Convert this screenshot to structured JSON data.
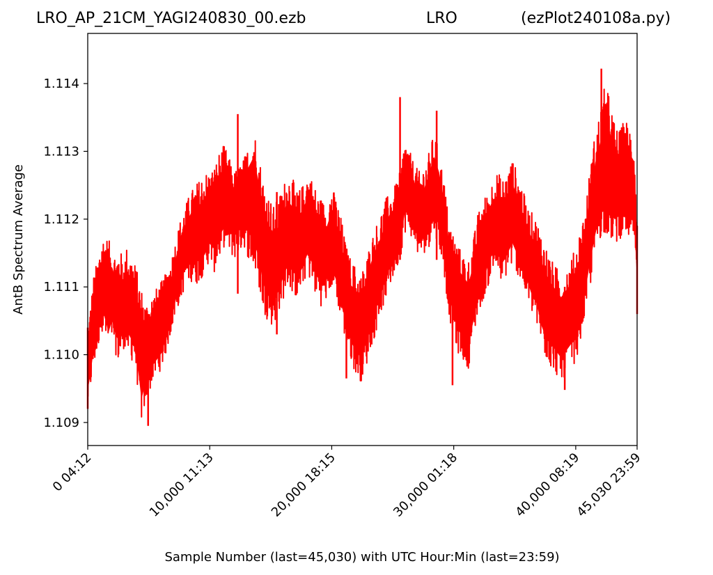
{
  "header": {
    "title_left": "LRO_AP_21CM_YAGI240830_00.ezb",
    "title_center": "LRO",
    "title_right": "(ezPlot240108a.py)"
  },
  "chart_data": {
    "type": "line",
    "xlabel": "Sample Number (last=45,030) with UTC Hour:Min (last=23:59)",
    "ylabel": "AntB Spectrum Average",
    "xlim": [
      0,
      45030
    ],
    "ylim": [
      1.10866,
      1.11474
    ],
    "grid": false,
    "xticks": [
      {
        "value": 0,
        "label": "0  04:12"
      },
      {
        "value": 10000,
        "label": "10,000  11:13"
      },
      {
        "value": 20000,
        "label": "20,000  18:15"
      },
      {
        "value": 30000,
        "label": "30,000  01:18"
      },
      {
        "value": 40000,
        "label": "40,000  08:19"
      },
      {
        "value": 45030,
        "label": "45,030  23:59"
      }
    ],
    "yticks": [
      {
        "value": 1.109,
        "label": "1.109"
      },
      {
        "value": 1.11,
        "label": "1.110"
      },
      {
        "value": 1.111,
        "label": "1.111"
      },
      {
        "value": 1.112,
        "label": "1.112"
      },
      {
        "value": 1.113,
        "label": "1.113"
      },
      {
        "value": 1.114,
        "label": "1.114"
      }
    ],
    "series": [
      {
        "color": "#ff0000",
        "x": [
          0,
          250,
          500,
          800,
          1100,
          1400,
          1700,
          2000,
          2300,
          2600,
          2900,
          3200,
          3500,
          3800,
          4100,
          4400,
          4700,
          5000,
          5300,
          5700,
          6100,
          6400,
          6800,
          7200,
          7600,
          8000,
          8400,
          8800,
          9200,
          9600,
          10000,
          10400,
          10800,
          11200,
          11600,
          12000,
          12400,
          12800,
          13200,
          13600,
          14000,
          14400,
          14800,
          15200,
          15600,
          16000,
          16400,
          16800,
          17200,
          17600,
          18000,
          18400,
          18800,
          19200,
          19600,
          20000,
          20400,
          20800,
          21200,
          21600,
          22000,
          22400,
          22800,
          23200,
          23600,
          24000,
          24400,
          24800,
          25200,
          25600,
          26000,
          26400,
          26800,
          27200,
          27600,
          28000,
          28400,
          28800,
          29200,
          29600,
          30000,
          30400,
          30800,
          31200,
          31600,
          32000,
          32400,
          32800,
          33200,
          33600,
          34000,
          34400,
          34800,
          35200,
          35600,
          36000,
          36400,
          36800,
          37200,
          37600,
          38000,
          38400,
          38800,
          39200,
          39600,
          40000,
          40400,
          40800,
          41200,
          41600,
          42000,
          42400,
          42800,
          43200,
          43600,
          44000,
          44400,
          44800,
          45030
        ],
        "low": [
          1.1092,
          1.1095,
          1.1098,
          1.11,
          1.1104,
          1.1102,
          1.11,
          1.1102,
          1.11,
          1.1098,
          1.1101,
          1.11,
          1.1099,
          1.1099,
          1.1095,
          1.109,
          1.1092,
          1.1094,
          1.1096,
          1.1097,
          1.1098,
          1.11,
          1.1103,
          1.1106,
          1.1108,
          1.111,
          1.1111,
          1.111,
          1.1111,
          1.1112,
          1.1114,
          1.1112,
          1.1114,
          1.1116,
          1.1115,
          1.1114,
          1.1115,
          1.1116,
          1.1114,
          1.1112,
          1.111,
          1.1106,
          1.1105,
          1.1104,
          1.1106,
          1.1108,
          1.111,
          1.1109,
          1.1108,
          1.111,
          1.1112,
          1.111,
          1.1108,
          1.1107,
          1.1108,
          1.111,
          1.1108,
          1.1105,
          1.1101,
          1.1099,
          1.1097,
          1.1096,
          1.1098,
          1.1101,
          1.1103,
          1.1106,
          1.1108,
          1.111,
          1.1112,
          1.1114,
          1.1118,
          1.1118,
          1.1116,
          1.1114,
          1.1115,
          1.1116,
          1.1118,
          1.1116,
          1.1112,
          1.1106,
          1.1102,
          1.11,
          1.1099,
          1.1098,
          1.1102,
          1.1106,
          1.1108,
          1.111,
          1.1112,
          1.1112,
          1.111,
          1.1112,
          1.1113,
          1.1112,
          1.111,
          1.1108,
          1.1106,
          1.1104,
          1.1101,
          1.1099,
          1.1098,
          1.1097,
          1.1096,
          1.1097,
          1.1098,
          1.1099,
          1.1102,
          1.1106,
          1.111,
          1.1114,
          1.1117,
          1.1118,
          1.1117,
          1.1116,
          1.1117,
          1.1118,
          1.1117,
          1.1116,
          1.1108
        ],
        "high": [
          1.1104,
          1.1108,
          1.1112,
          1.1114,
          1.1117,
          1.1118,
          1.1117,
          1.1116,
          1.1115,
          1.1116,
          1.1114,
          1.1116,
          1.1115,
          1.1114,
          1.1112,
          1.111,
          1.1108,
          1.1108,
          1.1109,
          1.111,
          1.1111,
          1.1112,
          1.1114,
          1.1117,
          1.112,
          1.1122,
          1.1124,
          1.1125,
          1.1126,
          1.1127,
          1.1127,
          1.1128,
          1.113,
          1.1131,
          1.1129,
          1.1127,
          1.1128,
          1.1129,
          1.1131,
          1.1134,
          1.113,
          1.1126,
          1.1124,
          1.1122,
          1.1123,
          1.1125,
          1.1127,
          1.1126,
          1.1124,
          1.1125,
          1.1127,
          1.1126,
          1.1124,
          1.1123,
          1.1122,
          1.1125,
          1.1123,
          1.112,
          1.1116,
          1.1114,
          1.1113,
          1.1112,
          1.1114,
          1.1117,
          1.1119,
          1.1121,
          1.1123,
          1.1124,
          1.1125,
          1.1127,
          1.1132,
          1.113,
          1.1128,
          1.1127,
          1.1128,
          1.113,
          1.1133,
          1.113,
          1.1126,
          1.112,
          1.1118,
          1.1116,
          1.1115,
          1.1114,
          1.1117,
          1.1121,
          1.1123,
          1.1124,
          1.1126,
          1.1127,
          1.1126,
          1.1127,
          1.1129,
          1.1127,
          1.1125,
          1.1122,
          1.1121,
          1.112,
          1.1118,
          1.1116,
          1.1114,
          1.1113,
          1.1112,
          1.1113,
          1.1114,
          1.1116,
          1.1119,
          1.1122,
          1.1128,
          1.1133,
          1.1136,
          1.114,
          1.1138,
          1.1134,
          1.1133,
          1.1135,
          1.1134,
          1.1132,
          1.112
        ],
        "center": [
          1.1098,
          1.1101,
          1.1105,
          1.1107,
          1.111,
          1.111,
          1.1108,
          1.1109,
          1.1107,
          1.1107,
          1.1107,
          1.1108,
          1.1107,
          1.1106,
          1.1103,
          1.1099,
          1.11,
          1.1101,
          1.1102,
          1.1103,
          1.1104,
          1.1106,
          1.1108,
          1.1111,
          1.1114,
          1.1116,
          1.1117,
          1.1118,
          1.1118,
          1.1119,
          1.112,
          1.112,
          1.1122,
          1.1123,
          1.1122,
          1.1121,
          1.1122,
          1.1122,
          1.1123,
          1.1123,
          1.112,
          1.1116,
          1.1114,
          1.1113,
          1.1114,
          1.1116,
          1.1118,
          1.1117,
          1.1116,
          1.1117,
          1.1119,
          1.1118,
          1.1116,
          1.1115,
          1.1115,
          1.1117,
          1.1115,
          1.1112,
          1.1108,
          1.1106,
          1.1105,
          1.1104,
          1.1106,
          1.1109,
          1.1111,
          1.1113,
          1.1115,
          1.1117,
          1.1118,
          1.112,
          1.1125,
          1.1124,
          1.1122,
          1.112,
          1.1121,
          1.1123,
          1.1125,
          1.1123,
          1.1119,
          1.1113,
          1.111,
          1.1108,
          1.1107,
          1.1106,
          1.1109,
          1.1113,
          1.1115,
          1.1117,
          1.1119,
          1.1119,
          1.1118,
          1.1119,
          1.1121,
          1.1119,
          1.1117,
          1.1115,
          1.1113,
          1.1112,
          1.1109,
          1.1107,
          1.1106,
          1.1105,
          1.1104,
          1.1105,
          1.1106,
          1.1107,
          1.111,
          1.1114,
          1.1119,
          1.1123,
          1.1126,
          1.1129,
          1.1127,
          1.1125,
          1.1125,
          1.1126,
          1.1125,
          1.1124,
          1.1114
        ]
      }
    ],
    "spikes": [
      {
        "x": 0,
        "low": 1.1092,
        "high": 1.1104
      },
      {
        "x": 4950,
        "low": 1.10895,
        "high": 1.1106
      },
      {
        "x": 12300,
        "low": 1.1109,
        "high": 1.11355
      },
      {
        "x": 15500,
        "low": 1.1103,
        "high": 1.1124
      },
      {
        "x": 21200,
        "low": 1.10965,
        "high": 1.1115
      },
      {
        "x": 25600,
        "low": 1.1114,
        "high": 1.1138
      },
      {
        "x": 28600,
        "low": 1.1114,
        "high": 1.1136
      },
      {
        "x": 29900,
        "low": 1.10955,
        "high": 1.1112
      },
      {
        "x": 39100,
        "low": 1.10948,
        "high": 1.111
      },
      {
        "x": 42100,
        "low": 1.112,
        "high": 1.11422
      },
      {
        "x": 45030,
        "low": 1.1106,
        "high": 1.1119
      }
    ]
  }
}
